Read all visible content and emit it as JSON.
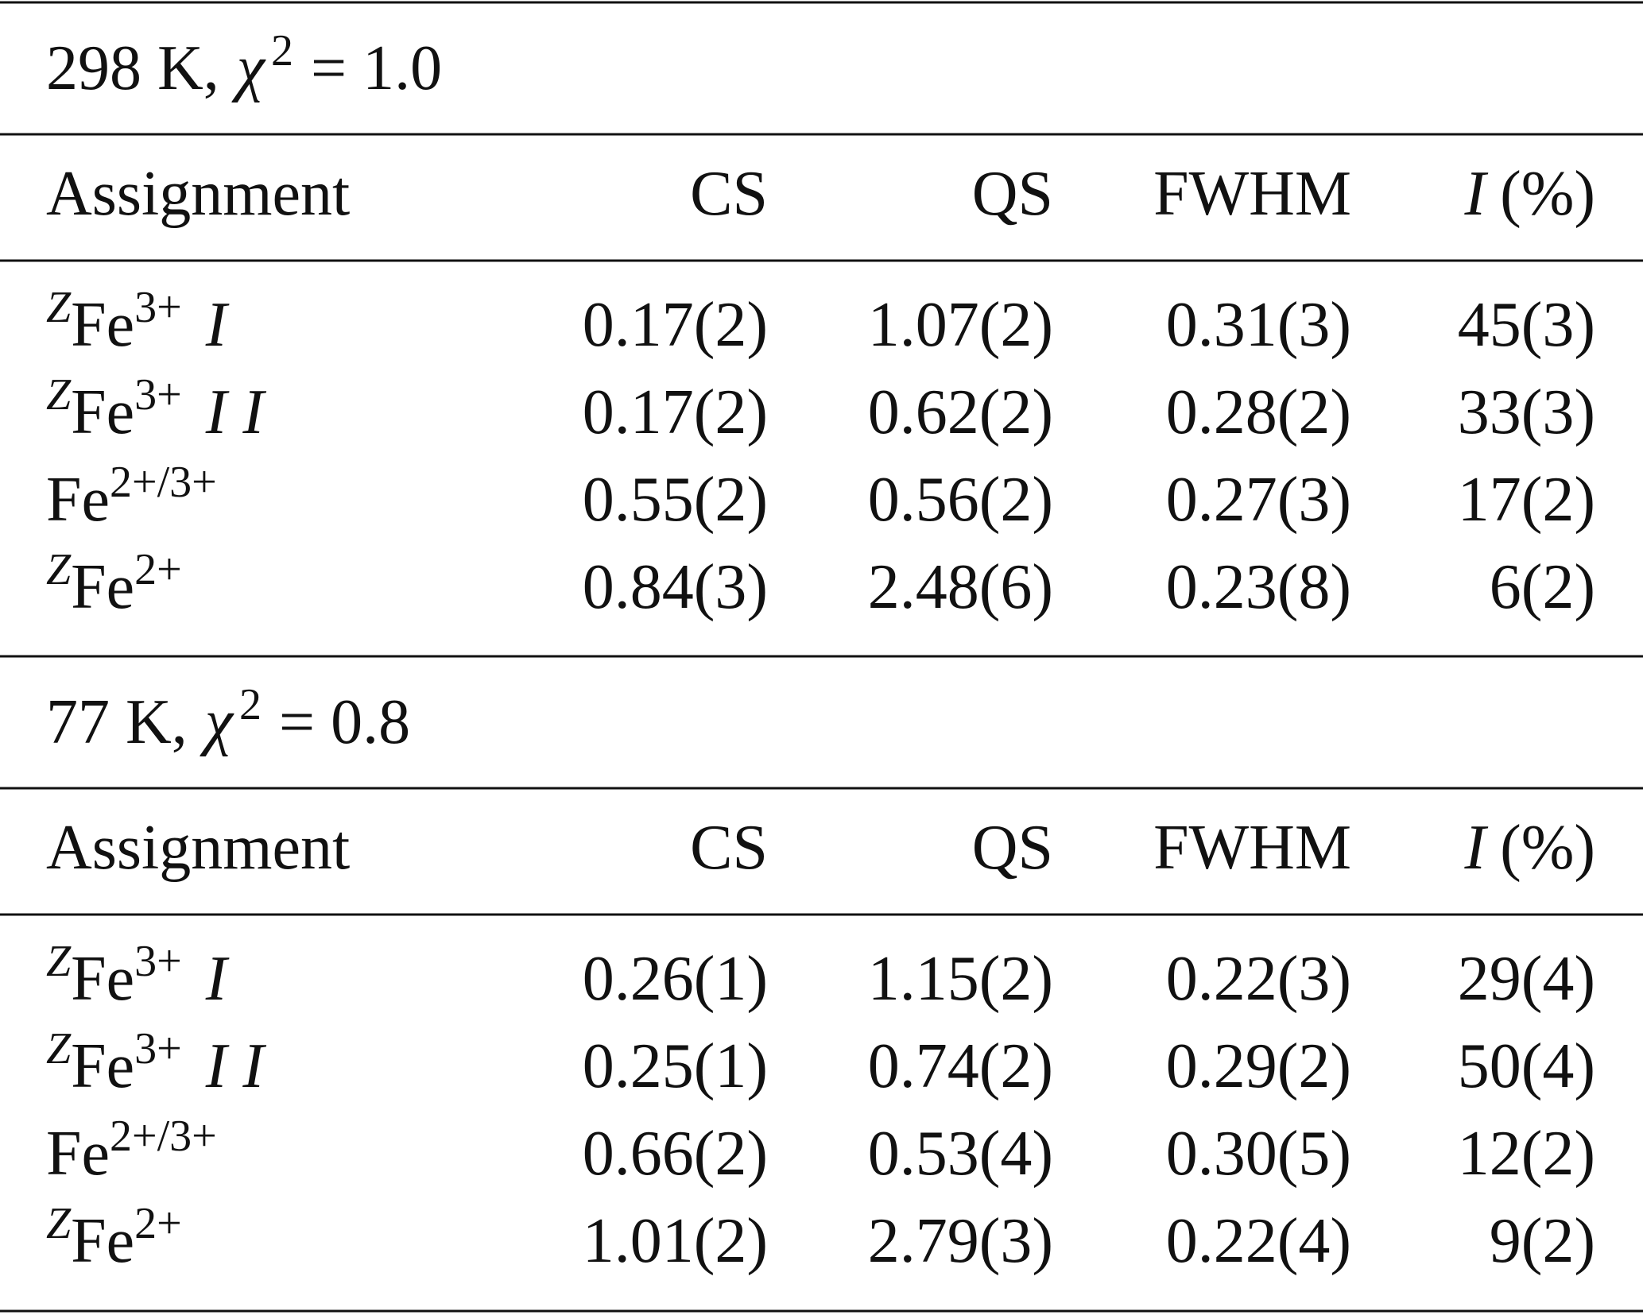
{
  "sections": [
    {
      "title": {
        "text": "298 K,",
        "symbol": "χ",
        "exponent": "2",
        "value": "= 1.0"
      },
      "header": {
        "assignment": "Assignment",
        "columns": [
          "CS",
          "QS",
          "FWHM"
        ],
        "intensity_symbol": "I",
        "intensity_unit": "(%)"
      },
      "rows": [
        {
          "assignment": {
            "pre": "Z",
            "base": "Fe",
            "sup": "3+",
            "suffix": "I"
          },
          "values": [
            "0.17(2)",
            "1.07(2)",
            "0.31(3)",
            "45(3)"
          ]
        },
        {
          "assignment": {
            "pre": "Z",
            "base": "Fe",
            "sup": "3+",
            "suffix": "I I"
          },
          "values": [
            "0.17(2)",
            "0.62(2)",
            "0.28(2)",
            "33(3)"
          ]
        },
        {
          "assignment": {
            "base": "Fe",
            "sup": "2+/3+"
          },
          "values": [
            "0.55(2)",
            "0.56(2)",
            "0.27(3)",
            "17(2)"
          ]
        },
        {
          "assignment": {
            "pre": "Z",
            "base": "Fe",
            "sup": "2+"
          },
          "values": [
            "0.84(3)",
            "2.48(6)",
            "0.23(8)",
            "6(2)"
          ]
        }
      ]
    },
    {
      "title": {
        "text": "77 K,",
        "symbol": "χ",
        "exponent": "2",
        "value": "= 0.8"
      },
      "header": {
        "assignment": "Assignment",
        "columns": [
          "CS",
          "QS",
          "FWHM"
        ],
        "intensity_symbol": "I",
        "intensity_unit": "(%)"
      },
      "rows": [
        {
          "assignment": {
            "pre": "Z",
            "base": "Fe",
            "sup": "3+",
            "suffix": "I"
          },
          "values": [
            "0.26(1)",
            "1.15(2)",
            "0.22(3)",
            "29(4)"
          ]
        },
        {
          "assignment": {
            "pre": "Z",
            "base": "Fe",
            "sup": "3+",
            "suffix": "I I"
          },
          "values": [
            "0.25(1)",
            "0.74(2)",
            "0.29(2)",
            "50(4)"
          ]
        },
        {
          "assignment": {
            "base": "Fe",
            "sup": "2+/3+"
          },
          "values": [
            "0.66(2)",
            "0.53(4)",
            "0.30(5)",
            "12(2)"
          ]
        },
        {
          "assignment": {
            "pre": "Z",
            "base": "Fe",
            "sup": "2+"
          },
          "values": [
            "1.01(2)",
            "2.79(3)",
            "0.22(4)",
            "9(2)"
          ]
        }
      ]
    }
  ]
}
